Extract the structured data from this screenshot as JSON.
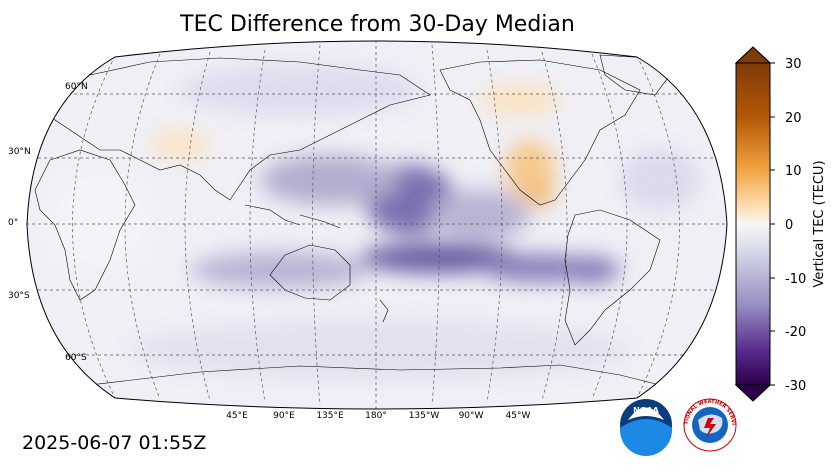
{
  "title": "TEC Difference from 30-Day Median",
  "timestamp": "2025-06-07 01:55Z",
  "map": {
    "projection": "Robinson",
    "central_longitude": 180,
    "latitude_labels": [
      "60°N",
      "30°N",
      "0°",
      "30°S",
      "60°S"
    ],
    "longitude_labels": [
      "45°E",
      "90°E",
      "135°E",
      "180°",
      "135°W",
      "90°W",
      "45°W"
    ]
  },
  "colorbar": {
    "label": "Vertical TEC (TECU)",
    "range": [
      -30,
      30
    ],
    "ticks": [
      "30",
      "20",
      "10",
      "0",
      "-10",
      "-20",
      "-30"
    ],
    "colors": {
      "max": "#7f3b08",
      "high": "#e08214",
      "low_pos": "#fee0b6",
      "zero": "#f7f7f7",
      "low_neg": "#d8daeb",
      "mid_neg": "#8073ac",
      "min": "#2d004b"
    }
  },
  "logos": {
    "noaa_text": "NOAA",
    "nws_text": "NATIONAL WEATHER SERVICE"
  }
}
